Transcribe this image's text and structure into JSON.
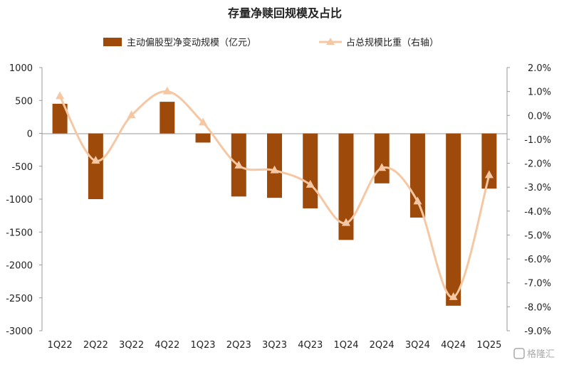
{
  "chart_data": {
    "type": "bar+line",
    "title": "存量净赎回规模及占比",
    "categories": [
      "1Q22",
      "2Q22",
      "3Q22",
      "4Q22",
      "1Q23",
      "2Q23",
      "3Q23",
      "4Q23",
      "1Q24",
      "2Q24",
      "3Q24",
      "4Q24",
      "1Q25"
    ],
    "series": [
      {
        "name": "主动偏股型净变动规模（亿元）",
        "type": "bar",
        "axis": "left",
        "color": "#9E4A0A",
        "values": [
          450,
          -1000,
          0,
          480,
          -140,
          -960,
          -980,
          -1140,
          -1620,
          -760,
          -1280,
          -2620,
          -840
        ]
      },
      {
        "name": "占总规模比重（右轴）",
        "type": "line",
        "axis": "right",
        "color": "#F6C7A3",
        "values": [
          0.8,
          -1.9,
          0.0,
          1.0,
          -0.3,
          -2.1,
          -2.3,
          -2.9,
          -4.5,
          -2.2,
          -3.6,
          -7.6,
          -2.5
        ]
      }
    ],
    "left_axis": {
      "ylim": [
        -3000,
        1000
      ],
      "ticks": [
        "1000",
        "500",
        "0",
        "-500",
        "-1000",
        "-1500",
        "-2000",
        "-2500",
        "-3000"
      ]
    },
    "right_axis": {
      "ylim": [
        -9.0,
        2.0
      ],
      "ticks": [
        "2.0%",
        "1.0%",
        "0.0%",
        "-1.0%",
        "-2.0%",
        "-3.0%",
        "-4.0%",
        "-5.0%",
        "-6.0%",
        "-7.0%",
        "-8.0%",
        "-9.0%"
      ]
    },
    "grid": false,
    "legend_position": "top"
  },
  "watermark": {
    "text": "格隆汇",
    "icon": "gelonghui-logo-icon"
  }
}
